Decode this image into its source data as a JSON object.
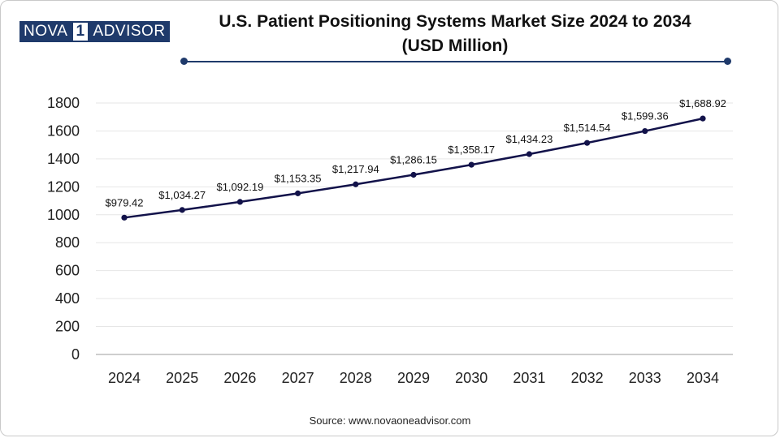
{
  "logo": {
    "part1": "NOVA",
    "part2": "1",
    "part3": "ADVISOR"
  },
  "title": {
    "line1": "U.S. Patient Positioning Systems Market Size 2024 to 2034",
    "line2": "(USD Million)"
  },
  "source": "Source: www.novaoneadvisor.com",
  "colors": {
    "line": "#12124a",
    "accent": "#1f3a6b",
    "grid": "#e6e6e6"
  },
  "chart_data": {
    "type": "line",
    "title": "U.S. Patient Positioning Systems Market Size 2024 to 2034 (USD Million)",
    "xlabel": "",
    "ylabel": "",
    "ylim": [
      0,
      1800
    ],
    "yticks": [
      0,
      200,
      400,
      600,
      800,
      1000,
      1200,
      1400,
      1600,
      1800
    ],
    "grid": true,
    "legend": "none",
    "categories": [
      "2024",
      "2025",
      "2026",
      "2027",
      "2028",
      "2029",
      "2030",
      "2031",
      "2032",
      "2033",
      "2034"
    ],
    "series": [
      {
        "values": [
          979.42,
          1034.27,
          1092.19,
          1153.35,
          1217.94,
          1286.15,
          1358.17,
          1434.23,
          1514.54,
          1599.36,
          1688.92
        ],
        "labels": [
          "$979.42",
          "$1,034.27",
          "$1,092.19",
          "$1,153.35",
          "$1,217.94",
          "$1,286.15",
          "$1,358.17",
          "$1,434.23",
          "$1,514.54",
          "$1,599.36",
          "$1,688.92"
        ]
      }
    ]
  }
}
